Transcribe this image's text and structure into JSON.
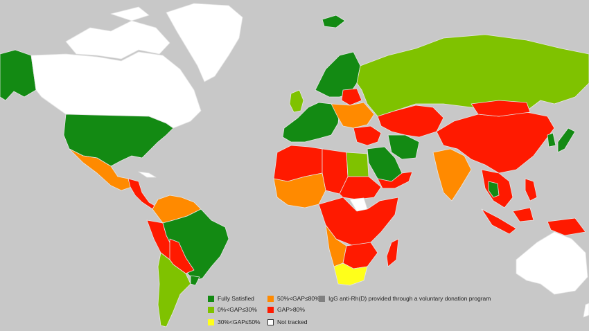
{
  "colors": {
    "ocean": "#c8c8c8",
    "fully_satisfied": "#138a13",
    "gap_0_30": "#7fc200",
    "gap_30_50": "#ffff1a",
    "gap_50_80": "#ff8a00",
    "gap_over_80": "#ff1a00",
    "voluntary": "#808080",
    "not_tracked": "#ffffff"
  },
  "legend": {
    "items": [
      {
        "key": "fully_satisfied",
        "label": "Fully Satisfied",
        "color": "#138a13",
        "outlined": false
      },
      {
        "key": "gap_0_30",
        "label": "0%<GAP≤30%",
        "color": "#7fc200",
        "outlined": false
      },
      {
        "key": "gap_30_50",
        "label": "30%<GAP≤50%",
        "color": "#ffff1a",
        "outlined": false
      },
      {
        "key": "gap_50_80",
        "label": "50%<GAP≤80%",
        "color": "#ff8a00",
        "outlined": false
      },
      {
        "key": "gap_over_80",
        "label": "GAP>80%",
        "color": "#ff1a00",
        "outlined": false
      },
      {
        "key": "not_tracked",
        "label": "Not tracked",
        "color": "#ffffff",
        "outlined": true
      },
      {
        "key": "voluntary",
        "label": "IgG anti-Rh(D) provided through  a voluntary donation program",
        "color": "#808080",
        "outlined": false
      }
    ]
  },
  "regions": [
    {
      "name": "alaska",
      "category": "fully_satisfied"
    },
    {
      "name": "canada",
      "category": "not_tracked"
    },
    {
      "name": "greenland",
      "category": "not_tracked"
    },
    {
      "name": "usa",
      "category": "fully_satisfied"
    },
    {
      "name": "mexico",
      "category": "gap_50_80"
    },
    {
      "name": "central-america",
      "category": "gap_over_80"
    },
    {
      "name": "cuba",
      "category": "not_tracked"
    },
    {
      "name": "colombia-venezuela",
      "category": "gap_50_80"
    },
    {
      "name": "peru-ecuador",
      "category": "gap_over_80"
    },
    {
      "name": "brazil",
      "category": "fully_satisfied"
    },
    {
      "name": "bolivia-paraguay",
      "category": "gap_over_80"
    },
    {
      "name": "argentina-chile",
      "category": "gap_0_30"
    },
    {
      "name": "uruguay",
      "category": "fully_satisfied"
    },
    {
      "name": "iceland",
      "category": "fully_satisfied"
    },
    {
      "name": "scandinavia",
      "category": "fully_satisfied"
    },
    {
      "name": "uk-ireland",
      "category": "gap_0_30"
    },
    {
      "name": "western-europe",
      "category": "fully_satisfied"
    },
    {
      "name": "eastern-europe",
      "category": "gap_50_80"
    },
    {
      "name": "poland-belarus",
      "category": "gap_over_80"
    },
    {
      "name": "russia",
      "category": "gap_0_30"
    },
    {
      "name": "north-africa-west",
      "category": "gap_over_80"
    },
    {
      "name": "libya-chad",
      "category": "gap_over_80"
    },
    {
      "name": "egypt",
      "category": "gap_0_30"
    },
    {
      "name": "west-africa",
      "category": "gap_50_80"
    },
    {
      "name": "sudan",
      "category": "gap_over_80"
    },
    {
      "name": "south-sudan",
      "category": "not_tracked"
    },
    {
      "name": "central-africa",
      "category": "gap_over_80"
    },
    {
      "name": "angola-namibia",
      "category": "gap_50_80"
    },
    {
      "name": "southern-africa",
      "category": "gap_over_80"
    },
    {
      "name": "south-africa",
      "category": "gap_30_50"
    },
    {
      "name": "madagascar",
      "category": "gap_over_80"
    },
    {
      "name": "middle-east",
      "category": "gap_over_80"
    },
    {
      "name": "saudi-arabia",
      "category": "fully_satisfied"
    },
    {
      "name": "iran",
      "category": "fully_satisfied"
    },
    {
      "name": "yemen-oman",
      "category": "gap_over_80"
    },
    {
      "name": "central-asia",
      "category": "gap_over_80"
    },
    {
      "name": "india",
      "category": "gap_50_80"
    },
    {
      "name": "china",
      "category": "gap_over_80"
    },
    {
      "name": "mongolia",
      "category": "gap_over_80"
    },
    {
      "name": "korea-japan",
      "category": "fully_satisfied"
    },
    {
      "name": "southeast-asia",
      "category": "gap_over_80"
    },
    {
      "name": "thailand",
      "category": "fully_satisfied"
    },
    {
      "name": "indonesia",
      "category": "gap_over_80"
    },
    {
      "name": "philippines",
      "category": "gap_over_80"
    },
    {
      "name": "australia",
      "category": "not_tracked"
    },
    {
      "name": "new-zealand",
      "category": "not_tracked"
    },
    {
      "name": "arctic-islands",
      "category": "not_tracked"
    }
  ]
}
